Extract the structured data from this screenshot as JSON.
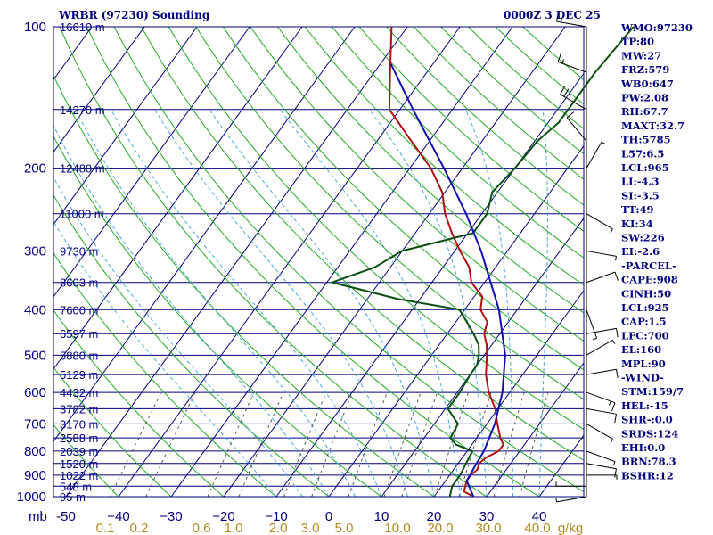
{
  "header": {
    "title": "WRBR (97230) Sounding",
    "time": "0000Z  3 DEC 25"
  },
  "units": {
    "pressure": "mb",
    "mixing_ratio": "g/kg"
  },
  "chart_data": {
    "type": "line",
    "title": "WRBR (97230) Sounding",
    "xlabel": "",
    "ylabel": "mb",
    "xlim": [
      -50,
      50
    ],
    "ylim": [
      1000,
      100
    ],
    "yscale": "log",
    "grid": true,
    "pressure_ticks": [
      100,
      200,
      300,
      400,
      500,
      600,
      700,
      800,
      900,
      1000
    ],
    "temperature_ticks": [
      -50,
      -40,
      -30,
      -20,
      -10,
      0,
      10,
      20,
      30,
      40
    ],
    "temperature_tick_labels": [
      "-50",
      "−40",
      "−30",
      "−20",
      "−10",
      "0",
      "10",
      "20",
      "30",
      "40"
    ],
    "mixing_ratio_labels": [
      "0.1",
      "0.2",
      "0.6",
      "1.0",
      "2.0",
      "3.0",
      "5.0",
      "10.0",
      "20.0",
      "30.0",
      "40.0",
      "g/kg"
    ],
    "height_levels": [
      {
        "label": "16610 m",
        "p": 100
      },
      {
        "label": "14270 m",
        "p": 150
      },
      {
        "label": "12480 m",
        "p": 200
      },
      {
        "label": "11000 m",
        "p": 250
      },
      {
        "label": "9730 m",
        "p": 300
      },
      {
        "label": "8603 m",
        "p": 350
      },
      {
        "label": "7600 m",
        "p": 400
      },
      {
        "label": "6597 m",
        "p": 450
      },
      {
        "label": "5880 m",
        "p": 500
      },
      {
        "label": "5129 m",
        "p": 550
      },
      {
        "label": "4432 m",
        "p": 600
      },
      {
        "label": "3782 m",
        "p": 650
      },
      {
        "label": "3170 m",
        "p": 700
      },
      {
        "label": "2588 m",
        "p": 750
      },
      {
        "label": "2039 m",
        "p": 800
      },
      {
        "label": "1520 m",
        "p": 850
      },
      {
        "label": "1022 m",
        "p": 900
      },
      {
        "label": "548 m",
        "p": 950
      },
      {
        "label": "95 m",
        "p": 1000
      }
    ],
    "series": [
      {
        "key": "temperature",
        "color": "#b01010",
        "points": [
          [
            1000,
            27.5
          ],
          [
            975,
            25.0
          ],
          [
            950,
            24.5
          ],
          [
            925,
            24.0
          ],
          [
            900,
            24.0
          ],
          [
            875,
            24.5
          ],
          [
            850,
            24.0
          ],
          [
            825,
            24.5
          ],
          [
            800,
            26.0
          ],
          [
            775,
            26.0
          ],
          [
            750,
            24.5
          ],
          [
            700,
            22.0
          ],
          [
            650,
            19.5
          ],
          [
            600,
            16.0
          ],
          [
            550,
            13.0
          ],
          [
            500,
            10.5
          ],
          [
            475,
            9.0
          ],
          [
            450,
            7.0
          ],
          [
            425,
            6.0
          ],
          [
            400,
            3.0
          ],
          [
            375,
            1.5
          ],
          [
            350,
            -2.5
          ],
          [
            325,
            -5.0
          ],
          [
            300,
            -9.0
          ],
          [
            275,
            -13.0
          ],
          [
            250,
            -17.0
          ],
          [
            225,
            -20.5
          ],
          [
            200,
            -26.0
          ],
          [
            175,
            -33.5
          ],
          [
            150,
            -42.0
          ],
          [
            125,
            -47.0
          ],
          [
            100,
            -53.0
          ]
        ]
      },
      {
        "key": "dewpoint",
        "color": "#0b4f10",
        "points": [
          [
            1000,
            23.0
          ],
          [
            950,
            22.0
          ],
          [
            900,
            22.0
          ],
          [
            850,
            21.5
          ],
          [
            800,
            21.0
          ],
          [
            775,
            17.0
          ],
          [
            750,
            15.0
          ],
          [
            700,
            14.5
          ],
          [
            650,
            10.5
          ],
          [
            600,
            10.5
          ],
          [
            550,
            10.0
          ],
          [
            525,
            10.0
          ],
          [
            500,
            9.0
          ],
          [
            475,
            7.5
          ],
          [
            450,
            5.0
          ],
          [
            400,
            -1.0
          ],
          [
            380,
            -14.0
          ],
          [
            350,
            -29.0
          ],
          [
            325,
            -23.0
          ],
          [
            300,
            -20.0
          ],
          [
            275,
            -9.0
          ],
          [
            250,
            -9.0
          ],
          [
            225,
            -11.0
          ],
          [
            200,
            -10.0
          ],
          [
            175,
            -9.5
          ],
          [
            160,
            -8.0
          ],
          [
            150,
            -8.0
          ],
          [
            125,
            -8.0
          ],
          [
            100,
            -7.0
          ]
        ]
      },
      {
        "key": "parcel",
        "color": "#1010b0",
        "points": [
          [
            1000,
            27.5
          ],
          [
            925,
            24.0
          ],
          [
            850,
            23.5
          ],
          [
            800,
            23.2
          ],
          [
            700,
            21.5
          ],
          [
            600,
            18.6
          ],
          [
            500,
            14.0
          ],
          [
            400,
            6.5
          ],
          [
            300,
            -5.0
          ],
          [
            250,
            -13.0
          ],
          [
            200,
            -23.5
          ],
          [
            150,
            -37.5
          ],
          [
            120,
            -48.0
          ]
        ]
      }
    ],
    "winds": [
      {
        "p": 100,
        "dir": 80,
        "kt": 15
      },
      {
        "p": 125,
        "dir": 70,
        "kt": 15
      },
      {
        "p": 150,
        "dir": 60,
        "kt": 20
      },
      {
        "p": 175,
        "dir": 40,
        "kt": 10
      },
      {
        "p": 200,
        "dir": 330,
        "kt": 5
      },
      {
        "p": 250,
        "dir": 240,
        "kt": 5
      },
      {
        "p": 300,
        "dir": 260,
        "kt": 5
      },
      {
        "p": 350,
        "dir": 290,
        "kt": 10
      },
      {
        "p": 400,
        "dir": 200,
        "kt": 5
      },
      {
        "p": 450,
        "dir": 280,
        "kt": 10
      },
      {
        "p": 500,
        "dir": 300,
        "kt": 5
      },
      {
        "p": 550,
        "dir": 280,
        "kt": 10
      },
      {
        "p": 600,
        "dir": 250,
        "kt": 15
      },
      {
        "p": 650,
        "dir": 260,
        "kt": 10
      },
      {
        "p": 700,
        "dir": 240,
        "kt": 5
      },
      {
        "p": 800,
        "dir": 250,
        "kt": 5
      },
      {
        "p": 850,
        "dir": 260,
        "kt": 10
      },
      {
        "p": 900,
        "dir": 270,
        "kt": 5
      },
      {
        "p": 950,
        "dir": 90,
        "kt": 5
      },
      {
        "p": 1000,
        "dir": 100,
        "kt": 5
      }
    ]
  },
  "indices": [
    "WMO:97230",
    "TP:80",
    "MW:27",
    "FRZ:579",
    "WB0:647",
    "PW:2.08",
    "RH:67.7",
    "MAXT:32.7",
    "TH:5785",
    "L57:6.5",
    "LCL:965",
    "LI:-4.3",
    "SI:-3.5",
    "TT:49",
    "KI:34",
    "SW:226",
    "EI:-2.6",
    "-PARCEL-",
    "CAPE:908",
    "CINH:50",
    "LCL:925",
    "CAP:1.5",
    "LFC:700",
    "EL:160",
    "MPL:90",
    "-WIND-",
    "STM:159/7",
    "HEL:-15",
    "SHR-:0.0",
    "SRDS:124",
    "EHI:0.0",
    "BRN:78.3",
    "BSHR:12"
  ],
  "colors": {
    "isobar": "#000080",
    "isotherm": "#000080",
    "dry_adiabat": "#22aa22",
    "moist_adiabat": "#4aa8d8",
    "mixing_ratio": "#555555",
    "background": "#ffffff"
  }
}
